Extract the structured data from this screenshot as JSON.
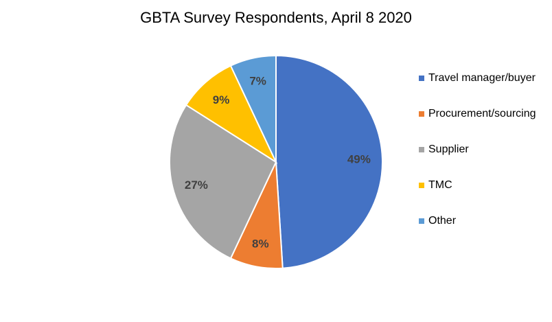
{
  "chart_data": {
    "type": "pie",
    "title": "GBTA Survey Respondents, April 8 2020",
    "categories": [
      "Travel manager/buyer",
      "Procurement/sourcing",
      "Supplier",
      "TMC",
      "Other"
    ],
    "values": [
      49,
      8,
      27,
      9,
      7
    ],
    "data_labels": [
      "49%",
      "8%",
      "27%",
      "9%",
      "7%"
    ],
    "colors": [
      "#4472C4",
      "#ED7D31",
      "#A5A5A5",
      "#FFC000",
      "#5B9BD5"
    ],
    "start_angle_deg": 0,
    "direction": "clockwise",
    "legend_position": "right"
  }
}
